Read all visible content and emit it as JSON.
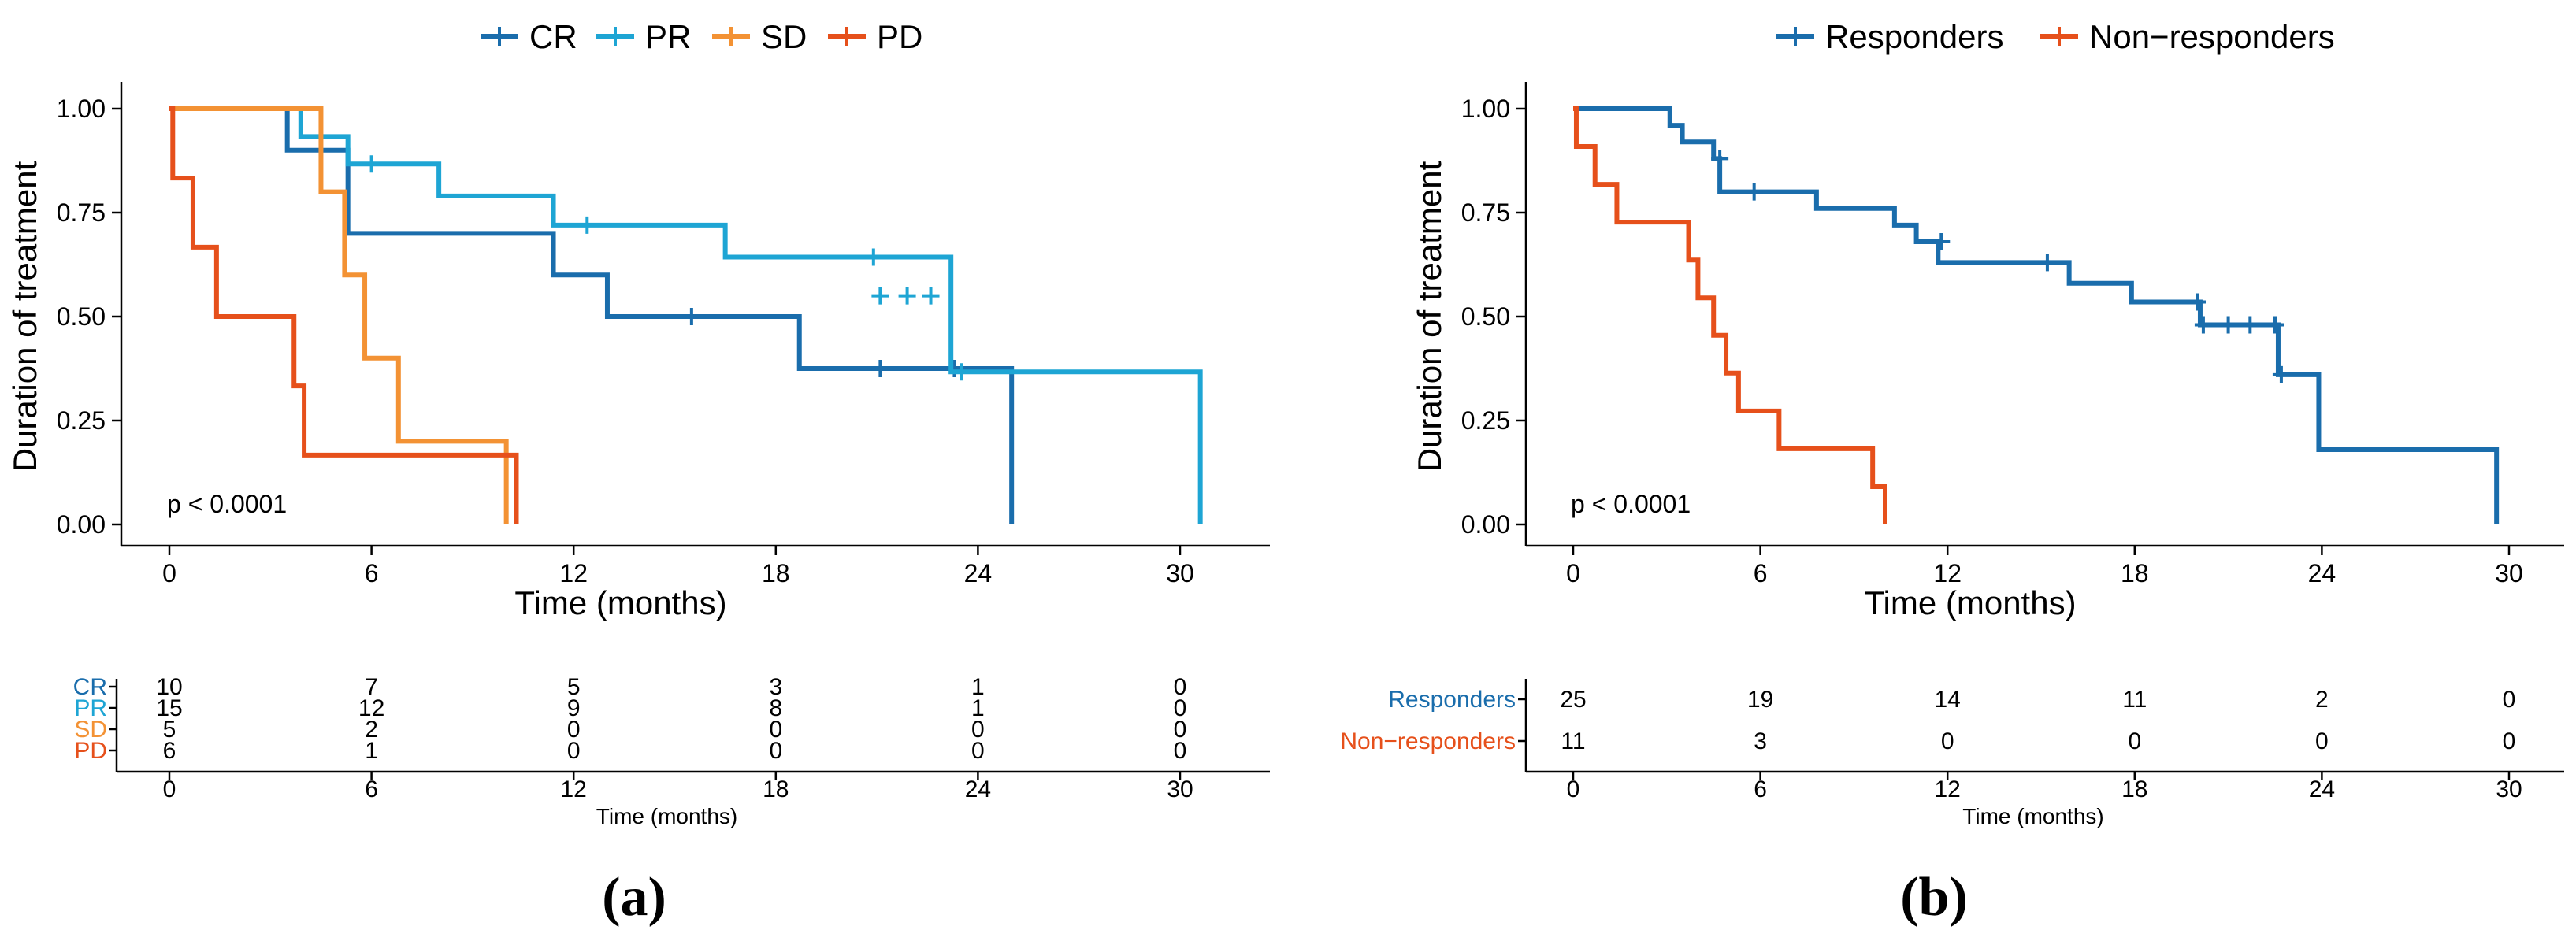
{
  "chart_data": [
    {
      "type": "line",
      "panel_label": "(a)",
      "xlabel": "Time (months)",
      "ylabel": "Duration of treatment",
      "xlim": [
        0,
        30
      ],
      "ylim": [
        0,
        1
      ],
      "x_ticks": [
        "0",
        "6",
        "12",
        "18",
        "24",
        "30"
      ],
      "y_ticks": [
        "0.00",
        "0.25",
        "0.50",
        "0.75",
        "1.00"
      ],
      "legend_position": "top",
      "annotation": "p < 0.0001",
      "series": [
        {
          "name": "CR",
          "color": "#1A6DAC",
          "steps": [
            [
              0,
              1.0
            ],
            [
              3.5,
              0.9
            ],
            [
              5.3,
              0.7
            ],
            [
              11.4,
              0.6
            ],
            [
              13,
              0.5
            ],
            [
              18.7,
              0.375
            ],
            [
              25,
              0.0
            ]
          ],
          "censored": [
            [
              15.5,
              0.5
            ],
            [
              21.1,
              0.375
            ],
            [
              23.3,
              0.375
            ]
          ]
        },
        {
          "name": "PR",
          "color": "#1EA5D4",
          "steps": [
            [
              0,
              1.0
            ],
            [
              3.9,
              0.933
            ],
            [
              5.3,
              0.867
            ],
            [
              8.0,
              0.79
            ],
            [
              11.4,
              0.72
            ],
            [
              16.5,
              0.643
            ],
            [
              23.2,
              0.367
            ],
            [
              30.6,
              0.0
            ]
          ],
          "censored": [
            [
              6.0,
              0.867
            ],
            [
              12.4,
              0.72
            ],
            [
              20.9,
              0.643
            ],
            [
              21.1,
              0.55
            ],
            [
              21.9,
              0.55
            ],
            [
              22.6,
              0.55
            ],
            [
              23.5,
              0.367
            ]
          ]
        },
        {
          "name": "SD",
          "color": "#F39234",
          "steps": [
            [
              0,
              1.0
            ],
            [
              4.5,
              0.8
            ],
            [
              5.2,
              0.6
            ],
            [
              5.8,
              0.4
            ],
            [
              6.8,
              0.2
            ],
            [
              10.0,
              0.0
            ]
          ],
          "censored": []
        },
        {
          "name": "PD",
          "color": "#E6501B",
          "steps": [
            [
              0,
              1.0
            ],
            [
              0.1,
              0.833
            ],
            [
              0.7,
              0.667
            ],
            [
              1.4,
              0.5
            ],
            [
              3.7,
              0.333
            ],
            [
              4.0,
              0.167
            ],
            [
              10.3,
              0.0
            ]
          ],
          "censored": []
        }
      ],
      "risk_table": {
        "xlabel": "Time (months)",
        "times": [
          "0",
          "6",
          "12",
          "18",
          "24",
          "30"
        ],
        "rows": [
          {
            "label": "CR",
            "color": "#1A6DAC",
            "values": [
              "10",
              "7",
              "5",
              "3",
              "1",
              "0"
            ]
          },
          {
            "label": "PR",
            "color": "#1EA5D4",
            "values": [
              "15",
              "12",
              "9",
              "8",
              "1",
              "0"
            ]
          },
          {
            "label": "SD",
            "color": "#F39234",
            "values": [
              "5",
              "2",
              "0",
              "0",
              "0",
              "0"
            ]
          },
          {
            "label": "PD",
            "color": "#E6501B",
            "values": [
              "6",
              "1",
              "0",
              "0",
              "0",
              "0"
            ]
          }
        ]
      }
    },
    {
      "type": "line",
      "panel_label": "(b)",
      "xlabel": "Time (months)",
      "ylabel": "Duration of treatment",
      "xlim": [
        0,
        30
      ],
      "ylim": [
        0,
        1
      ],
      "x_ticks": [
        "0",
        "6",
        "12",
        "18",
        "24",
        "30"
      ],
      "y_ticks": [
        "0.00",
        "0.25",
        "0.50",
        "0.75",
        "1.00"
      ],
      "legend_position": "top",
      "annotation": "p < 0.0001",
      "series": [
        {
          "name": "Responders",
          "color": "#1A6DAC",
          "steps": [
            [
              0,
              1.0
            ],
            [
              3.1,
              0.96
            ],
            [
              3.5,
              0.92
            ],
            [
              4.5,
              0.88
            ],
            [
              4.7,
              0.8
            ],
            [
              7.8,
              0.76
            ],
            [
              10.3,
              0.72
            ],
            [
              11.0,
              0.68
            ],
            [
              11.7,
              0.63
            ],
            [
              15.9,
              0.58
            ],
            [
              17.9,
              0.535
            ],
            [
              20.1,
              0.48
            ],
            [
              22.6,
              0.36
            ],
            [
              23.9,
              0.18
            ],
            [
              29.6,
              0.0
            ]
          ],
          "censored": [
            [
              4.7,
              0.88
            ],
            [
              5.8,
              0.8
            ],
            [
              11.8,
              0.68
            ],
            [
              15.2,
              0.63
            ],
            [
              20.0,
              0.535
            ],
            [
              20.2,
              0.48
            ],
            [
              21.0,
              0.48
            ],
            [
              21.7,
              0.48
            ],
            [
              22.5,
              0.48
            ],
            [
              22.7,
              0.36
            ]
          ]
        },
        {
          "name": "Non−responders",
          "color": "#E6501B",
          "steps": [
            [
              0,
              1.0
            ],
            [
              0.1,
              0.909
            ],
            [
              0.7,
              0.818
            ],
            [
              1.4,
              0.727
            ],
            [
              3.7,
              0.636
            ],
            [
              4.0,
              0.545
            ],
            [
              4.5,
              0.455
            ],
            [
              4.9,
              0.364
            ],
            [
              5.3,
              0.273
            ],
            [
              6.6,
              0.182
            ],
            [
              9.6,
              0.091
            ],
            [
              10.0,
              0.0
            ]
          ],
          "censored": []
        }
      ],
      "risk_table": {
        "xlabel": "Time (months)",
        "times": [
          "0",
          "6",
          "12",
          "18",
          "24",
          "30"
        ],
        "rows": [
          {
            "label": "Responders",
            "color": "#1A6DAC",
            "values": [
              "25",
              "19",
              "14",
              "11",
              "2",
              "0"
            ]
          },
          {
            "label": "Non−responders",
            "color": "#E6501B",
            "values": [
              "11",
              "3",
              "0",
              "0",
              "0",
              "0"
            ]
          }
        ]
      }
    }
  ]
}
